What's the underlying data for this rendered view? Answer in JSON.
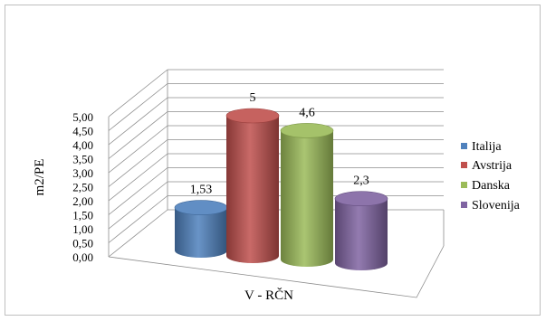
{
  "chart_data": {
    "type": "bar",
    "style": "3d-cylinder",
    "categories": [
      "V - RČN"
    ],
    "series": [
      {
        "name": "Italija",
        "values": [
          1.53
        ],
        "label": "1,53",
        "color": "#4F81BD"
      },
      {
        "name": "Avstrija",
        "values": [
          5
        ],
        "label": "5",
        "color": "#C0504D"
      },
      {
        "name": "Danska",
        "values": [
          4.6
        ],
        "label": "4,6",
        "color": "#9BBB59"
      },
      {
        "name": "Slovenija",
        "values": [
          2.3
        ],
        "label": "2,3",
        "color": "#8064A2"
      }
    ],
    "xlabel": "V - RČN",
    "ylabel": "m2/PE",
    "ylim": [
      0,
      5
    ],
    "yticks": [
      "0,00",
      "0,50",
      "1,00",
      "1,50",
      "2,00",
      "2,50",
      "3,00",
      "3,50",
      "4,00",
      "4,50",
      "5,00"
    ],
    "grid": true,
    "legend_position": "right"
  }
}
